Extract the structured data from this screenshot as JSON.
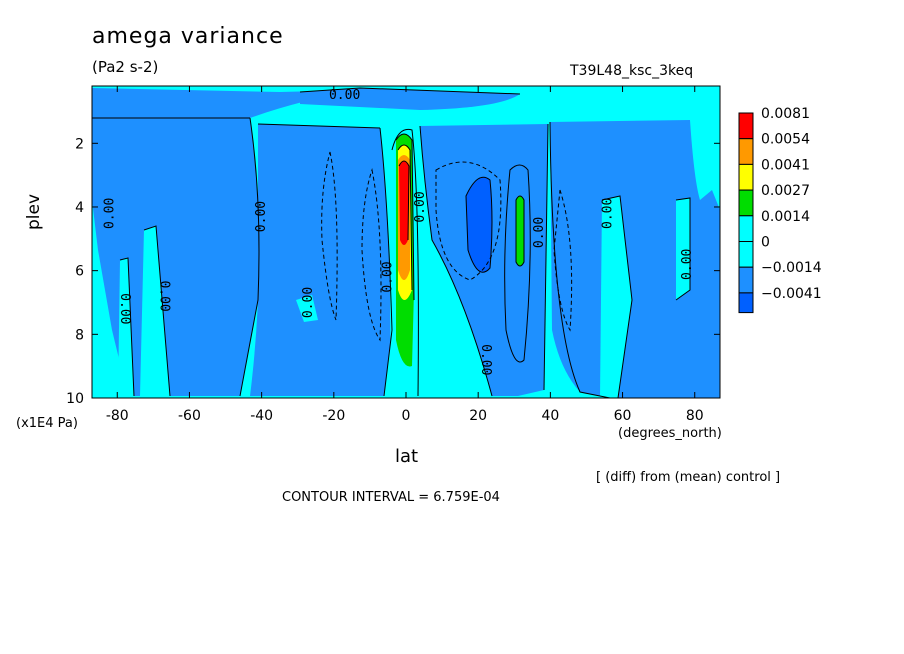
{
  "header": {
    "title": "amega variance",
    "units": "(Pa2 s-2)",
    "run_name": "T39L48_ksc_3keq"
  },
  "footer": {
    "diff_note": "[ (diff) from (mean) control ]",
    "contour_interval": "CONTOUR INTERVAL = 6.759E-04"
  },
  "chart_data": {
    "type": "heatmap",
    "title": "amega variance",
    "xlabel": "lat",
    "x_units": "(degrees_north)",
    "ylabel": "plev",
    "y_units": "(x1E4 Pa)",
    "xlim": [
      -87,
      87
    ],
    "ylim": [
      10,
      0.2
    ],
    "x_ticks": [
      -80,
      -60,
      -40,
      -20,
      0,
      20,
      40,
      60,
      80
    ],
    "y_ticks": [
      2,
      4,
      6,
      8,
      10
    ],
    "legend": {
      "levels": [
        "0.0081",
        "0.0054",
        "0.0041",
        "0.0027",
        "0.0014",
        "0",
        "−0.0014",
        "−0.0041"
      ],
      "colors": [
        "#ff0000",
        "#ff9900",
        "#ffff00",
        "#00dd00",
        "#00ffff",
        "#00ffff",
        "#1e90ff",
        "#0060ff"
      ]
    },
    "contour_labels": [
      {
        "text": "0.00",
        "lat": -82,
        "plev": 4.2,
        "rotate": -90
      },
      {
        "text": "0.00",
        "lat": -40,
        "plev": 4.3,
        "rotate": -90
      },
      {
        "text": "0.00",
        "lat": -78,
        "plev": 7.2,
        "rotate": 90
      },
      {
        "text": "0.00",
        "lat": -67,
        "plev": 6.8,
        "rotate": 90
      },
      {
        "text": "0.00",
        "lat": -27,
        "plev": 7.0,
        "rotate": -90
      },
      {
        "text": "0.00",
        "lat": -5,
        "plev": 6.2,
        "rotate": -90
      },
      {
        "text": "0.00",
        "lat": 4,
        "plev": 4.0,
        "rotate": -90
      },
      {
        "text": "0.00",
        "lat": 22,
        "plev": 8.8,
        "rotate": 90
      },
      {
        "text": "0.00",
        "lat": 37,
        "plev": 4.8,
        "rotate": -90
      },
      {
        "text": "0.00",
        "lat": 56,
        "plev": 4.2,
        "rotate": -90
      },
      {
        "text": "0.00",
        "lat": 78,
        "plev": 5.8,
        "rotate": -90
      },
      {
        "text": "0.00",
        "lat": -17,
        "plev": 0.5,
        "rotate": 0
      }
    ],
    "regions": [
      {
        "level": "0",
        "desc": "equatorial cyan band",
        "lat": [
          -6,
          4
        ],
        "plev": [
          1.2,
          10
        ]
      },
      {
        "level": "−0.0041",
        "desc": "strong negative",
        "lat": [
          16,
          25
        ],
        "plev": [
          3.0,
          6.3
        ]
      },
      {
        "level": "0.0014",
        "desc": "positive green",
        "lat": [
          30,
          33
        ],
        "plev": [
          3.5,
          5.8
        ]
      },
      {
        "level": "0.0081",
        "desc": "max red",
        "lat": [
          -2,
          2
        ],
        "plev": [
          2.2,
          5.5
        ]
      }
    ]
  }
}
